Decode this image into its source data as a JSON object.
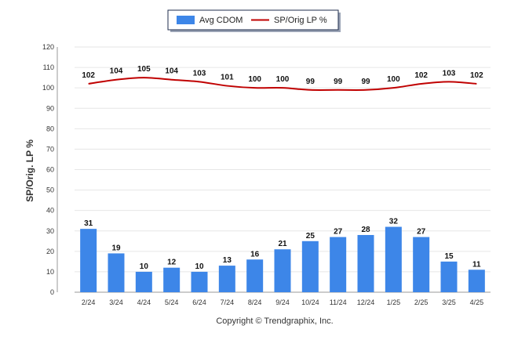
{
  "chart_data": {
    "type": "bar",
    "categories": [
      "2/24",
      "3/24",
      "4/24",
      "5/24",
      "6/24",
      "7/24",
      "8/24",
      "9/24",
      "10/24",
      "11/24",
      "12/24",
      "1/25",
      "2/25",
      "3/25",
      "4/25"
    ],
    "series": [
      {
        "name": "Avg CDOM",
        "type": "bar",
        "color": "#3d86e8",
        "values": [
          31,
          19,
          10,
          12,
          10,
          13,
          16,
          21,
          25,
          27,
          28,
          32,
          27,
          15,
          11
        ]
      },
      {
        "name": "SP/Orig LP %",
        "type": "line",
        "color": "#c00000",
        "values": [
          102,
          104,
          105,
          104,
          103,
          101,
          100,
          100,
          99,
          99,
          99,
          100,
          102,
          103,
          102
        ]
      }
    ],
    "ylabel": "SP/Orig. LP %",
    "ylim": [
      0,
      120
    ],
    "yticks": [
      0,
      10,
      20,
      30,
      40,
      50,
      60,
      70,
      80,
      90,
      100,
      110,
      120
    ],
    "grid": true,
    "legend_position": "top-center"
  },
  "footer": {
    "copyright": "Copyright © Trendgraphix, Inc."
  }
}
